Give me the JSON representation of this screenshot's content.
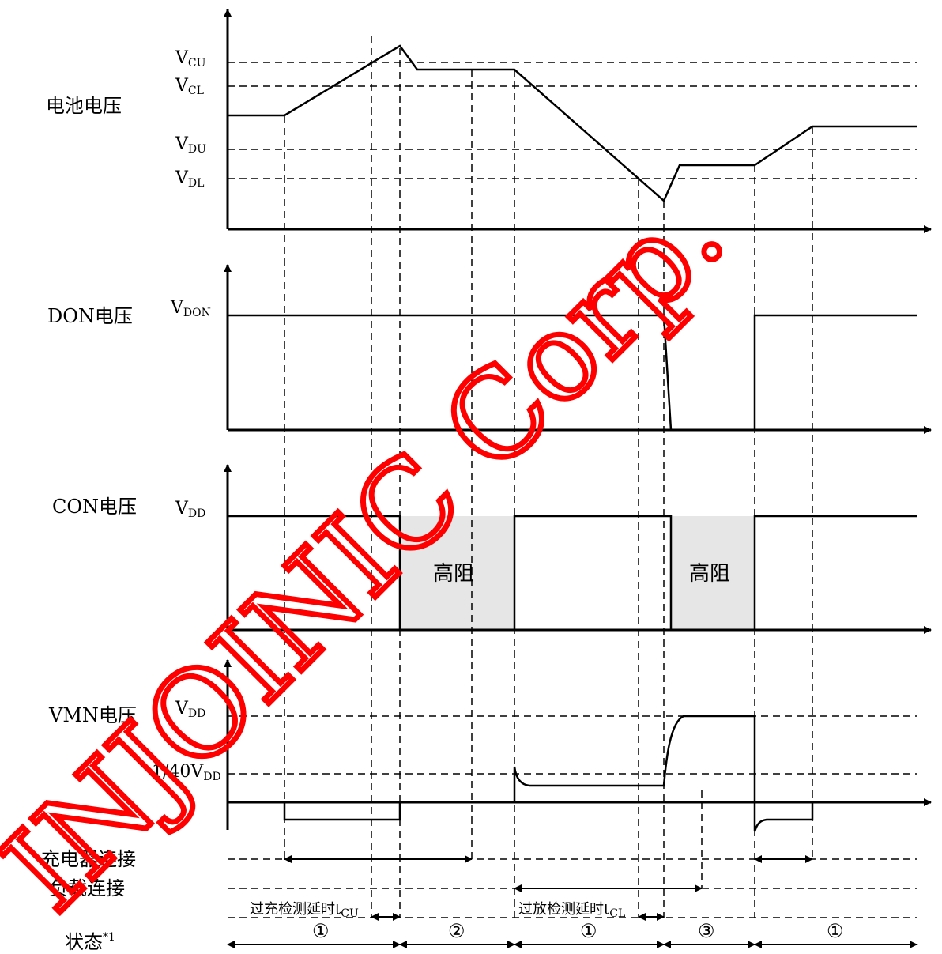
{
  "labels": {
    "battery_voltage": "电池电压",
    "don_voltage": "DON电压",
    "con_voltage": "CON电压",
    "vmn_voltage": "VMN电压",
    "charger_connect": "充电器连接",
    "load_connect": "负载连接",
    "state": "状态",
    "state_note": "*1",
    "high_z": "高阻",
    "oc_delay": "过充检测延时",
    "od_delay": "过放检测延时"
  },
  "levels": {
    "vcu": {
      "main": "V",
      "sub": "CU"
    },
    "vcl": {
      "main": "V",
      "sub": "CL"
    },
    "vdu": {
      "main": "V",
      "sub": "DU"
    },
    "vdl": {
      "main": "V",
      "sub": "DL"
    },
    "vdon": {
      "main": "V",
      "sub": "DON"
    },
    "vdd_con": {
      "main": "V",
      "sub": "DD"
    },
    "vdd_vmn": {
      "main": "V",
      "sub": "DD"
    },
    "vdd_40": {
      "prefix": "1/40V",
      "sub": "DD"
    }
  },
  "delay_subs": {
    "tcu_main": "t",
    "tcu_sub": "CU",
    "tcl_main": "t",
    "tcl_sub": "CL"
  },
  "states": [
    "①",
    "②",
    "①",
    "③",
    "①"
  ],
  "watermark": "INJOINIC Corp.",
  "colors": {
    "watermark": "#ff0000",
    "high_z_fill": "#e6e6e6"
  }
}
